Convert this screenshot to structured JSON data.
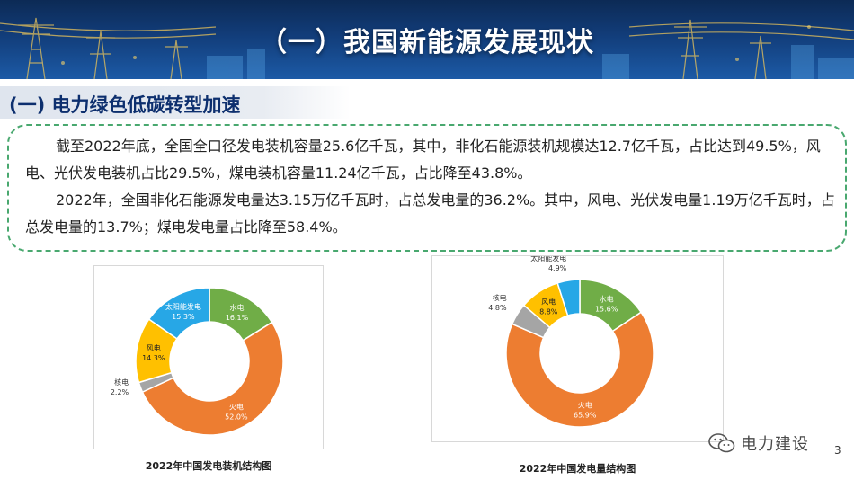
{
  "header": {
    "title": "（一）我国新能源发展现状"
  },
  "section": {
    "title": "(一) 电力绿色低碳转型加速"
  },
  "body": {
    "para1": "截至2022年底，全国全口径发电装机容量25.6亿千瓦，其中，非化石能源装机规模达12.7亿千瓦，占比达到49.5%，风电、光伏发电装机占比29.5%，煤电装机容量11.24亿千瓦，占比降至43.8%。",
    "para2": "2022年，全国非化石能源发电量达3.15万亿千瓦时，占总发电量的36.2%。其中，风电、光伏发电量1.19万亿千瓦时，占总发电量的13.7%；煤电发电量占比降至58.4%。"
  },
  "chart_data": [
    {
      "type": "pie",
      "title": "2022年中国发电装机结构图",
      "slices": [
        {
          "label": "水电",
          "value": 16.1,
          "value_label": "16.1%",
          "color": "#70ad47"
        },
        {
          "label": "火电",
          "value": 52.0,
          "value_label": "52.0%",
          "color": "#ed7d31"
        },
        {
          "label": "核电",
          "value": 2.2,
          "value_label": "2.2%",
          "color": "#a5a5a5"
        },
        {
          "label": "风电",
          "value": 14.3,
          "value_label": "14.3%",
          "color": "#ffc000"
        },
        {
          "label": "太阳能发电",
          "value": 15.3,
          "value_label": "15.3%",
          "color": "#27a7e6"
        }
      ]
    },
    {
      "type": "pie",
      "title": "2022年中国发电量结构图",
      "slices": [
        {
          "label": "水电",
          "value": 15.6,
          "value_label": "15.6%",
          "color": "#70ad47"
        },
        {
          "label": "火电",
          "value": 65.9,
          "value_label": "65.9%",
          "color": "#ed7d31"
        },
        {
          "label": "核电",
          "value": 4.8,
          "value_label": "4.8%",
          "color": "#a5a5a5"
        },
        {
          "label": "风电",
          "value": 8.8,
          "value_label": "8.8%",
          "color": "#ffc000"
        },
        {
          "label": "太阳能发电",
          "value": 4.9,
          "value_label": "4.9%",
          "color": "#27a7e6"
        }
      ]
    }
  ],
  "footer": {
    "watermark": "电力建设",
    "page_number": "3"
  }
}
